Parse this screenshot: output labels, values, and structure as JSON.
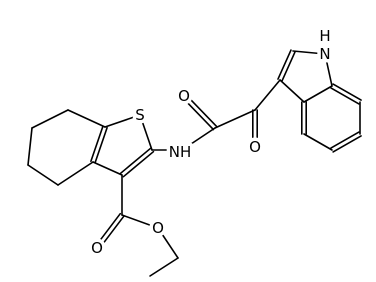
{
  "atom_labels": [
    "H",
    "N",
    "O",
    "O",
    "NH",
    "S",
    "O",
    "O"
  ]
}
